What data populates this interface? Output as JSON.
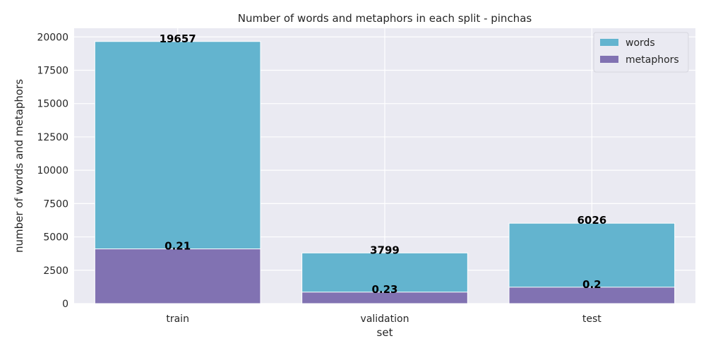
{
  "chart_data": {
    "type": "bar",
    "title": "Number of words and metaphors in each split - pinchas",
    "xlabel": "set",
    "ylabel": "number of words and metaphors",
    "categories": [
      "train",
      "validation",
      "test"
    ],
    "series": [
      {
        "name": "words",
        "values": [
          19657,
          3799,
          6026
        ],
        "labels": [
          "19657",
          "3799",
          "6026"
        ],
        "color": "#63b4cf"
      },
      {
        "name": "metaphors",
        "values": [
          4100,
          860,
          1230
        ],
        "labels": [
          "0.21",
          "0.23",
          "0.2"
        ],
        "color": "#8172b2"
      }
    ],
    "ylim": [
      0,
      20650
    ],
    "yticks": [
      0,
      2500,
      5000,
      7500,
      10000,
      12500,
      15000,
      17500,
      20000
    ],
    "ytick_labels": [
      "0",
      "2500",
      "5000",
      "7500",
      "10000",
      "12500",
      "15000",
      "17500",
      "20000"
    ],
    "grid": true,
    "legend_position": "top-right",
    "background": "#eaeaf2",
    "grid_color": "#ffffff"
  }
}
